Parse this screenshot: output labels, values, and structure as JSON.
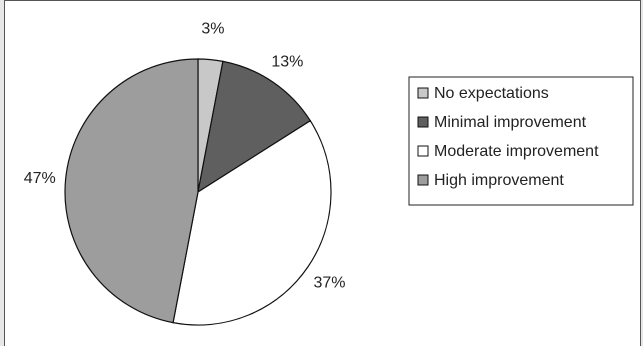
{
  "chart_data": {
    "type": "pie",
    "title": "",
    "slices": [
      {
        "label": "No expectations",
        "value": 3,
        "display": "3%",
        "color": "#c8c8c8"
      },
      {
        "label": "Minimal improvement",
        "value": 13,
        "display": "13%",
        "color": "#5f5f5f"
      },
      {
        "label": "Moderate improvement",
        "value": 37,
        "display": "37%",
        "color": "#ffffff"
      },
      {
        "label": "High improvement",
        "value": 47,
        "display": "47%",
        "color": "#9d9d9d"
      }
    ],
    "legend_position": "right",
    "start_angle_deg": 0,
    "direction": "clockwise"
  }
}
